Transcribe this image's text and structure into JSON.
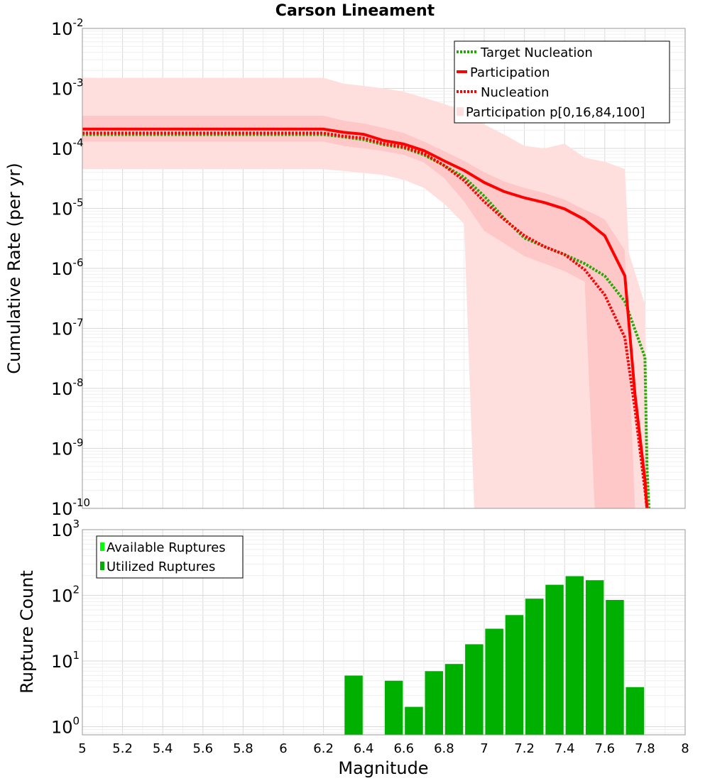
{
  "chart_data": [
    {
      "type": "line",
      "title": "Carson Lineament",
      "xlabel": "",
      "ylabel": "Cumulative Rate (per yr)",
      "xlim": [
        5,
        8
      ],
      "ylim": [
        1e-10,
        0.01
      ],
      "yscale": "log",
      "grid": true,
      "legend_position": "top-right",
      "y_tick_labels": [
        {
          "base": "10",
          "exp": "-10"
        },
        {
          "base": "10",
          "exp": "-9"
        },
        {
          "base": "10",
          "exp": "-8"
        },
        {
          "base": "10",
          "exp": "-7"
        },
        {
          "base": "10",
          "exp": "-6"
        },
        {
          "base": "10",
          "exp": "-5"
        },
        {
          "base": "10",
          "exp": "-4"
        },
        {
          "base": "10",
          "exp": "-3"
        },
        {
          "base": "10",
          "exp": "-2"
        }
      ],
      "bands": [
        {
          "name": "Participation p[0,16,84,100]",
          "color": "#ffdede",
          "x": [
            5.0,
            6.2,
            6.3,
            6.4,
            6.5,
            6.6,
            6.7,
            6.8,
            6.9,
            6.95,
            7.0,
            7.1,
            7.2,
            7.3,
            7.4,
            7.5,
            7.6,
            7.7,
            7.72,
            7.8,
            7.82
          ],
          "upper": [
            0.0015,
            0.0015,
            0.0012,
            0.0011,
            0.001,
            0.00088,
            0.0007,
            0.00055,
            0.00042,
            0.00032,
            0.00025,
            0.00017,
            0.00011,
            0.0001,
            0.00012,
            7e-05,
            6e-05,
            4.5e-05,
            1.8e-06,
            2.5e-07,
            1e-10
          ],
          "lower": [
            4.5e-05,
            4.5e-05,
            4.2e-05,
            3.9e-05,
            3.6e-05,
            3e-05,
            2.2e-05,
            1.2e-05,
            5.5e-06,
            1e-10,
            1e-10,
            1e-10,
            1e-10,
            1e-10,
            1e-10,
            1e-10,
            1e-10,
            1e-10,
            1e-10,
            1e-10,
            1e-10
          ]
        },
        {
          "name": "",
          "color": "#ffc8c8",
          "x": [
            5.0,
            6.2,
            6.3,
            6.4,
            6.5,
            6.6,
            6.7,
            6.8,
            6.9,
            7.0,
            7.1,
            7.2,
            7.3,
            7.4,
            7.5,
            7.55,
            7.6,
            7.7,
            7.75
          ],
          "upper": [
            0.00035,
            0.00035,
            0.00029,
            0.00026,
            0.00022,
            0.00018,
            0.00013,
            9e-05,
            6.2e-05,
            4e-05,
            2.8e-05,
            2.2e-05,
            1.8e-05,
            1.4e-05,
            9.5e-06,
            8e-06,
            6.5e-06,
            2e-06,
            1e-10
          ],
          "lower": [
            0.00013,
            0.00013,
            0.00011,
            0.0001,
            9e-05,
            7.8e-05,
            5.8e-05,
            3.2e-05,
            1.3e-05,
            4.2e-06,
            2.6e-06,
            1.6e-06,
            1.2e-06,
            9e-07,
            6e-07,
            1e-10,
            1e-10,
            1e-10,
            1e-10
          ]
        }
      ],
      "series": [
        {
          "name": "Target Nucleation",
          "color": "#22aa00",
          "style": "dotted",
          "x": [
            5.0,
            6.2,
            6.3,
            6.4,
            6.5,
            6.6,
            6.7,
            6.8,
            6.9,
            7.0,
            7.1,
            7.2,
            7.3,
            7.4,
            7.5,
            7.6,
            7.7,
            7.8,
            7.81,
            7.82
          ],
          "values": [
            0.00017,
            0.00017,
            0.000155,
            0.00014,
            0.000115,
            0.000102,
            7.8e-05,
            5.2e-05,
            3.3e-05,
            1.6e-05,
            6.8e-06,
            3.2e-06,
            2.3e-06,
            1.7e-06,
            1.2e-06,
            7.5e-07,
            2.8e-07,
            3.3e-08,
            5e-10,
            1e-10
          ]
        },
        {
          "name": "Participation",
          "color": "#ff0000",
          "style": "solid",
          "x": [
            5.0,
            6.2,
            6.3,
            6.4,
            6.5,
            6.6,
            6.7,
            6.8,
            6.9,
            7.0,
            7.1,
            7.2,
            7.3,
            7.4,
            7.5,
            7.6,
            7.7,
            7.75,
            7.8,
            7.81
          ],
          "values": [
            0.00021,
            0.00021,
            0.000185,
            0.000172,
            0.000135,
            0.000118,
            9.2e-05,
            6.2e-05,
            4.3e-05,
            2.7e-05,
            1.9e-05,
            1.5e-05,
            1.25e-05,
            9.8e-06,
            6.5e-06,
            3.5e-06,
            7.5e-07,
            8e-09,
            3e-10,
            1e-10
          ]
        },
        {
          "name": "Nucleation",
          "color": "#ff0000",
          "style": "dotted",
          "x": [
            5.0,
            6.2,
            6.3,
            6.4,
            6.5,
            6.6,
            6.7,
            6.8,
            6.9,
            7.0,
            7.1,
            7.2,
            7.3,
            7.4,
            7.5,
            7.6,
            7.7,
            7.75,
            7.8,
            7.81
          ],
          "values": [
            0.00018,
            0.00018,
            0.00016,
            0.000148,
            0.00012,
            0.000106,
            8.2e-05,
            5.2e-05,
            2.9e-05,
            1.3e-05,
            6.5e-06,
            3.5e-06,
            2.3e-06,
            1.7e-06,
            9.5e-07,
            3.6e-07,
            7e-08,
            4.5e-09,
            2e-10,
            1e-10
          ]
        }
      ]
    },
    {
      "type": "bar",
      "title": "",
      "xlabel": "Magnitude",
      "ylabel": "Rupture Count",
      "xlim": [
        5,
        8
      ],
      "ylim": [
        0.75,
        1000
      ],
      "yscale": "log",
      "grid": true,
      "legend_position": "top-left",
      "bar_width": 0.09,
      "x_tick_labels": [
        "5",
        "5.2",
        "5.4",
        "5.6",
        "5.8",
        "6",
        "6.2",
        "6.4",
        "6.6",
        "6.8",
        "7",
        "7.2",
        "7.4",
        "7.6",
        "7.8",
        "8"
      ],
      "y_tick_labels": [
        {
          "base": "10",
          "exp": "0"
        },
        {
          "base": "10",
          "exp": "1"
        },
        {
          "base": "10",
          "exp": "2"
        },
        {
          "base": "10",
          "exp": "3"
        }
      ],
      "series": [
        {
          "name": "Available Ruptures",
          "color": "#00ff00",
          "values": []
        },
        {
          "name": "Utilized Ruptures",
          "color": "#00b000",
          "x": [
            6.35,
            6.55,
            6.65,
            6.75,
            6.85,
            6.95,
            7.05,
            7.15,
            7.25,
            7.35,
            7.45,
            7.55,
            7.65,
            7.75
          ],
          "values": [
            6,
            5,
            2,
            7,
            9,
            18,
            31,
            50,
            89,
            145,
            196,
            170,
            85,
            4
          ]
        }
      ]
    }
  ]
}
